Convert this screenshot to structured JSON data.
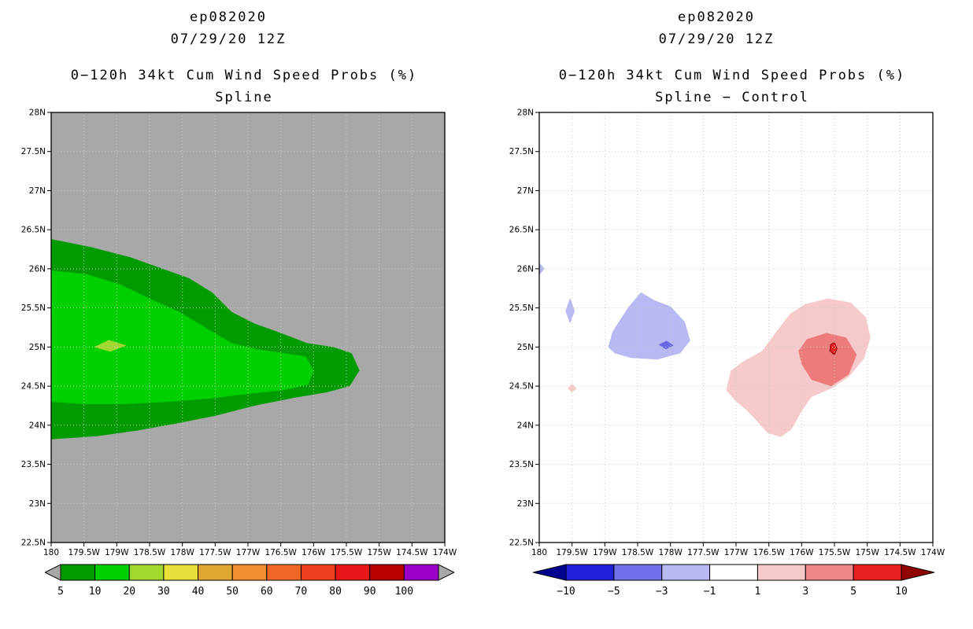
{
  "figure": {
    "background": "#ffffff"
  },
  "chart_data": [
    {
      "type": "filled-contour-map",
      "title_lines": [
        "ep082020",
        "07/29/20 12Z"
      ],
      "subtitle_lines": [
        "0−120h 34kt Cum Wind Speed Probs (%)",
        "Spline"
      ],
      "x_axis": {
        "ticks": [
          {
            "label": "180",
            "value": 180
          },
          {
            "label": "179.5W",
            "value": 179.5
          },
          {
            "label": "179W",
            "value": 179
          },
          {
            "label": "178.5W",
            "value": 178.5
          },
          {
            "label": "178W",
            "value": 178
          },
          {
            "label": "177.5W",
            "value": 177.5
          },
          {
            "label": "177W",
            "value": 177
          },
          {
            "label": "176.5W",
            "value": 176.5
          },
          {
            "label": "176W",
            "value": 176
          },
          {
            "label": "175.5W",
            "value": 175.5
          },
          {
            "label": "175W",
            "value": 175
          },
          {
            "label": "174.5W",
            "value": 174.5
          },
          {
            "label": "174W",
            "value": 174
          }
        ]
      },
      "y_axis": {
        "ticks": [
          {
            "label": "22.5N",
            "value": 22.5
          },
          {
            "label": "23N",
            "value": 23
          },
          {
            "label": "23.5N",
            "value": 23.5
          },
          {
            "label": "24N",
            "value": 24
          },
          {
            "label": "24.5N",
            "value": 24.5
          },
          {
            "label": "25N",
            "value": 25
          },
          {
            "label": "25.5N",
            "value": 25.5
          },
          {
            "label": "26N",
            "value": 26
          },
          {
            "label": "26.5N",
            "value": 26.5
          },
          {
            "label": "27N",
            "value": 27
          },
          {
            "label": "27.5N",
            "value": 27.5
          },
          {
            "label": "28N",
            "value": 28
          }
        ]
      },
      "background": "#a8a8a8",
      "grid_color": "#c9c9c9",
      "regions": [
        {
          "name": "prob-5-outer",
          "level": 5,
          "color": "#009b00",
          "points": [
            [
              180,
              26.38
            ],
            [
              179.4,
              26.28
            ],
            [
              178.8,
              26.15
            ],
            [
              178.3,
              26.0
            ],
            [
              177.9,
              25.88
            ],
            [
              177.55,
              25.7
            ],
            [
              177.25,
              25.45
            ],
            [
              176.9,
              25.3
            ],
            [
              176.5,
              25.18
            ],
            [
              176.1,
              25.05
            ],
            [
              175.7,
              25.0
            ],
            [
              175.42,
              24.92
            ],
            [
              175.3,
              24.7
            ],
            [
              175.45,
              24.5
            ],
            [
              175.8,
              24.42
            ],
            [
              176.3,
              24.35
            ],
            [
              176.9,
              24.25
            ],
            [
              177.5,
              24.12
            ],
            [
              178.1,
              24.02
            ],
            [
              178.7,
              23.93
            ],
            [
              179.3,
              23.86
            ],
            [
              180,
              23.82
            ]
          ]
        },
        {
          "name": "prob-10-inner",
          "level": 10,
          "color": "#00d000",
          "points": [
            [
              180,
              25.98
            ],
            [
              179.45,
              25.93
            ],
            [
              178.95,
              25.8
            ],
            [
              178.5,
              25.62
            ],
            [
              178.05,
              25.45
            ],
            [
              177.65,
              25.25
            ],
            [
              177.25,
              25.05
            ],
            [
              176.85,
              24.97
            ],
            [
              176.45,
              24.92
            ],
            [
              176.12,
              24.88
            ],
            [
              176.0,
              24.7
            ],
            [
              176.08,
              24.52
            ],
            [
              176.45,
              24.45
            ],
            [
              177.0,
              24.4
            ],
            [
              177.6,
              24.34
            ],
            [
              178.2,
              24.3
            ],
            [
              178.9,
              24.27
            ],
            [
              179.5,
              24.27
            ],
            [
              180,
              24.3
            ]
          ]
        },
        {
          "name": "prob-20-core",
          "level": 20,
          "color": "#a0d830",
          "points": [
            [
              179.35,
              25.0
            ],
            [
              179.12,
              25.09
            ],
            [
              178.85,
              25.02
            ],
            [
              179.1,
              24.94
            ]
          ]
        }
      ],
      "colorbar": {
        "labels": [
          "5",
          "10",
          "20",
          "30",
          "40",
          "50",
          "60",
          "70",
          "80",
          "90",
          "100"
        ],
        "colors": [
          "#009b00",
          "#00d000",
          "#a0d830",
          "#e8e03a",
          "#e0a830",
          "#f09030",
          "#f06828",
          "#f04020",
          "#e81818",
          "#b80000",
          "#9a00c8"
        ],
        "left_arrow_color": "#a8a8a8",
        "right_arrow_color": "#a8a8a8",
        "arrow_width": 20
      }
    },
    {
      "type": "filled-contour-map",
      "title_lines": [
        "ep082020",
        "07/29/20 12Z"
      ],
      "subtitle_lines": [
        "0−120h 34kt Cum Wind Speed Probs (%)",
        "Spline − Control"
      ],
      "x_axis": {
        "ticks": [
          {
            "label": "180",
            "value": 180
          },
          {
            "label": "179.5W",
            "value": 179.5
          },
          {
            "label": "179W",
            "value": 179
          },
          {
            "label": "178.5W",
            "value": 178.5
          },
          {
            "label": "178W",
            "value": 178
          },
          {
            "label": "177.5W",
            "value": 177.5
          },
          {
            "label": "177W",
            "value": 177
          },
          {
            "label": "176.5W",
            "value": 176.5
          },
          {
            "label": "176W",
            "value": 176
          },
          {
            "label": "175.5W",
            "value": 175.5
          },
          {
            "label": "175W",
            "value": 175
          },
          {
            "label": "174.5W",
            "value": 174.5
          },
          {
            "label": "174W",
            "value": 174
          }
        ]
      },
      "y_axis": {
        "ticks": [
          {
            "label": "22.5N",
            "value": 22.5
          },
          {
            "label": "23N",
            "value": 23
          },
          {
            "label": "23.5N",
            "value": 23.5
          },
          {
            "label": "24N",
            "value": 24
          },
          {
            "label": "24.5N",
            "value": 24.5
          },
          {
            "label": "25N",
            "value": 25
          },
          {
            "label": "25.5N",
            "value": 25.5
          },
          {
            "label": "26N",
            "value": 26
          },
          {
            "label": "26.5N",
            "value": 26.5
          },
          {
            "label": "27N",
            "value": 27
          },
          {
            "label": "27.5N",
            "value": 27.5
          },
          {
            "label": "28N",
            "value": 28
          }
        ]
      },
      "background": "#ffffff",
      "grid_color": "#c9c9c9",
      "regions": [
        {
          "name": "diff-neg1-main-blob",
          "level": -1,
          "color": "#b8b8f2",
          "points": [
            [
              178.95,
              25.0
            ],
            [
              178.88,
              25.2
            ],
            [
              178.65,
              25.5
            ],
            [
              178.45,
              25.7
            ],
            [
              178.25,
              25.6
            ],
            [
              178.0,
              25.52
            ],
            [
              177.78,
              25.32
            ],
            [
              177.7,
              25.08
            ],
            [
              177.85,
              24.92
            ],
            [
              178.2,
              24.84
            ],
            [
              178.6,
              24.86
            ],
            [
              178.85,
              24.92
            ]
          ]
        },
        {
          "name": "diff-neg3-core",
          "level": -3,
          "color": "#6868e6",
          "points": [
            [
              178.18,
              25.03
            ],
            [
              178.06,
              25.08
            ],
            [
              177.95,
              25.02
            ],
            [
              178.07,
              24.97
            ]
          ]
        },
        {
          "name": "diff-neg1-small-diamond",
          "level": -1,
          "color": "#b8b8f2",
          "points": [
            [
              179.6,
              25.46
            ],
            [
              179.53,
              25.63
            ],
            [
              179.46,
              25.46
            ],
            [
              179.53,
              25.3
            ]
          ]
        },
        {
          "name": "diff-neg1-edge-speck",
          "level": -1,
          "color": "#b8b8f2",
          "points": [
            [
              180,
              26.08
            ],
            [
              179.92,
              26.0
            ],
            [
              180,
              25.92
            ]
          ]
        },
        {
          "name": "diff-pos1-blob",
          "level": 1,
          "color": "#f6caca",
          "points": [
            [
              177.15,
              24.45
            ],
            [
              177.08,
              24.7
            ],
            [
              176.88,
              24.82
            ],
            [
              176.6,
              24.95
            ],
            [
              176.4,
              25.18
            ],
            [
              176.18,
              25.42
            ],
            [
              175.95,
              25.55
            ],
            [
              175.6,
              25.62
            ],
            [
              175.25,
              25.57
            ],
            [
              175.02,
              25.38
            ],
            [
              174.95,
              25.12
            ],
            [
              175.05,
              24.85
            ],
            [
              175.28,
              24.62
            ],
            [
              175.55,
              24.47
            ],
            [
              175.85,
              24.36
            ],
            [
              176.0,
              24.18
            ],
            [
              176.15,
              23.95
            ],
            [
              176.32,
              23.85
            ],
            [
              176.52,
              23.9
            ],
            [
              176.68,
              24.05
            ],
            [
              176.85,
              24.2
            ],
            [
              177.02,
              24.32
            ]
          ]
        },
        {
          "name": "diff-pos3-core",
          "level": 3,
          "color": "#ee7b7b",
          "points": [
            [
              176.05,
              24.95
            ],
            [
              175.92,
              25.1
            ],
            [
              175.62,
              25.18
            ],
            [
              175.32,
              25.12
            ],
            [
              175.16,
              24.9
            ],
            [
              175.28,
              24.65
            ],
            [
              175.55,
              24.5
            ],
            [
              175.85,
              24.58
            ],
            [
              176.0,
              24.78
            ]
          ]
        },
        {
          "name": "diff-pos5-core",
          "level": 5,
          "color": "#e82020",
          "stroke": "#900000",
          "points": [
            [
              175.56,
              25.03
            ],
            [
              175.5,
              25.06
            ],
            [
              175.46,
              24.98
            ],
            [
              175.5,
              24.9
            ],
            [
              175.57,
              24.95
            ]
          ]
        },
        {
          "name": "diff-pos1-speck",
          "level": 1,
          "color": "#f6caca",
          "points": [
            [
              179.57,
              24.47
            ],
            [
              179.5,
              24.53
            ],
            [
              179.43,
              24.47
            ],
            [
              179.5,
              24.42
            ]
          ]
        }
      ],
      "colorbar": {
        "labels": [
          "−10",
          "−5",
          "−3",
          "−1",
          "1",
          "3",
          "5",
          "10"
        ],
        "colors": [
          "#2020d8",
          "#7070e8",
          "#b8b8f2",
          "#ffffff",
          "#f6caca",
          "#ef8888",
          "#e82020"
        ],
        "left_arrow_color": "#000090",
        "right_arrow_color": "#900000",
        "arrow_width": 42
      }
    }
  ]
}
